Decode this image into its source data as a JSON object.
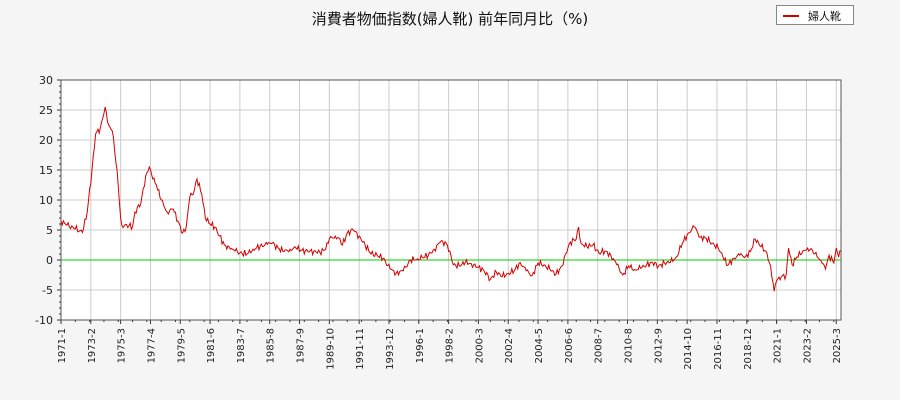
{
  "chart_data": {
    "type": "line",
    "title": "消費者物価指数(婦人靴) 前年同月比（%)",
    "legend": {
      "placement": "top-right",
      "entries": [
        "婦人靴"
      ]
    },
    "ylim": [
      -10,
      30
    ],
    "yticks": [
      -10,
      -5,
      0,
      5,
      10,
      15,
      20,
      25,
      30
    ],
    "xlim": [
      "1971-1",
      "2025-7"
    ],
    "xticks": [
      "1971-1",
      "1973-2",
      "1975-3",
      "1977-4",
      "1979-5",
      "1981-6",
      "1983-7",
      "1985-8",
      "1987-9",
      "1989-10",
      "1991-11",
      "1993-12",
      "1996-1",
      "1998-2",
      "2000-3",
      "2002-4",
      "2004-5",
      "2006-6",
      "2008-7",
      "2010-8",
      "2012-9",
      "2014-10",
      "2016-11",
      "2018-12",
      "2021-1",
      "2023-2",
      "2025-3"
    ],
    "grid": true,
    "reference_line": {
      "y": 0,
      "color": "#00cc00"
    },
    "series": [
      {
        "name": "婦人靴",
        "color": "#d40000",
        "points": [
          [
            "1971-1",
            6.5
          ],
          [
            "1971-6",
            5.8
          ],
          [
            "1972-1",
            5.2
          ],
          [
            "1972-7",
            4.6
          ],
          [
            "1972-11",
            8.0
          ],
          [
            "1973-3",
            15.0
          ],
          [
            "1973-6",
            21.0
          ],
          [
            "1973-10",
            22.0
          ],
          [
            "1974-2",
            25.5
          ],
          [
            "1974-5",
            22.5
          ],
          [
            "1974-8",
            21.5
          ],
          [
            "1974-12",
            15.0
          ],
          [
            "1975-3",
            7.0
          ],
          [
            "1975-4",
            5.8
          ],
          [
            "1975-10",
            5.7
          ],
          [
            "1976-1",
            5.5
          ],
          [
            "1976-3",
            8.0
          ],
          [
            "1976-8",
            9.5
          ],
          [
            "1976-12",
            14.0
          ],
          [
            "1977-3",
            15.5
          ],
          [
            "1977-6",
            13.5
          ],
          [
            "1977-9",
            12.5
          ],
          [
            "1978-1",
            10.0
          ],
          [
            "1978-6",
            8.0
          ],
          [
            "1978-11",
            8.5
          ],
          [
            "1979-3",
            6.5
          ],
          [
            "1979-7",
            4.5
          ],
          [
            "1979-10",
            5.5
          ],
          [
            "1980-1",
            10.5
          ],
          [
            "1980-4",
            11.0
          ],
          [
            "1980-7",
            13.5
          ],
          [
            "1980-11",
            11.0
          ],
          [
            "1981-2",
            7.0
          ],
          [
            "1981-6",
            6.0
          ],
          [
            "1981-10",
            5.5
          ],
          [
            "1982-2",
            4.0
          ],
          [
            "1982-6",
            2.5
          ],
          [
            "1982-11",
            1.8
          ],
          [
            "1983-3",
            1.5
          ],
          [
            "1983-7",
            1.2
          ],
          [
            "1984-1",
            1.0
          ],
          [
            "1984-6",
            1.8
          ],
          [
            "1984-12",
            2.3
          ],
          [
            "1985-6",
            2.6
          ],
          [
            "1985-10",
            2.8
          ],
          [
            "1986-3",
            2.0
          ],
          [
            "1986-8",
            1.4
          ],
          [
            "1987-1",
            1.8
          ],
          [
            "1987-6",
            2.0
          ],
          [
            "1987-11",
            1.6
          ],
          [
            "1988-4",
            1.4
          ],
          [
            "1988-9",
            1.5
          ],
          [
            "1989-2",
            1.3
          ],
          [
            "1989-7",
            1.8
          ],
          [
            "1989-10",
            3.5
          ],
          [
            "1990-3",
            4.0
          ],
          [
            "1990-6",
            3.7
          ],
          [
            "1990-9",
            2.5
          ],
          [
            "1991-1",
            4.5
          ],
          [
            "1991-6",
            5.0
          ],
          [
            "1991-11",
            4.0
          ],
          [
            "1992-4",
            2.5
          ],
          [
            "1992-9",
            1.0
          ],
          [
            "1993-2",
            0.8
          ],
          [
            "1993-7",
            0.3
          ],
          [
            "1994-1",
            -1.5
          ],
          [
            "1994-6",
            -2.2
          ],
          [
            "1994-12",
            -1.8
          ],
          [
            "1995-6",
            0.0
          ],
          [
            "1995-12",
            0.2
          ],
          [
            "1996-4",
            0.4
          ],
          [
            "1996-9",
            0.8
          ],
          [
            "1997-2",
            1.8
          ],
          [
            "1997-7",
            3.0
          ],
          [
            "1997-12",
            2.8
          ],
          [
            "1998-3",
            1.5
          ],
          [
            "1998-6",
            -0.8
          ],
          [
            "1998-11",
            -1.0
          ],
          [
            "1999-4",
            -0.4
          ],
          [
            "1999-9",
            -0.6
          ],
          [
            "2000-2",
            -1.2
          ],
          [
            "2000-7",
            -1.6
          ],
          [
            "2001-1",
            -3.2
          ],
          [
            "2001-6",
            -2.0
          ],
          [
            "2001-11",
            -2.8
          ],
          [
            "2002-4",
            -2.2
          ],
          [
            "2002-9",
            -1.8
          ],
          [
            "2003-2",
            -0.4
          ],
          [
            "2003-7",
            -1.8
          ],
          [
            "2003-12",
            -2.6
          ],
          [
            "2004-5",
            -0.5
          ],
          [
            "2004-10",
            -0.8
          ],
          [
            "2005-3",
            -1.6
          ],
          [
            "2005-8",
            -2.4
          ],
          [
            "2006-1",
            -1.0
          ],
          [
            "2006-4",
            1.0
          ],
          [
            "2006-8",
            3.0
          ],
          [
            "2007-1",
            3.5
          ],
          [
            "2007-3",
            5.5
          ],
          [
            "2007-5",
            2.8
          ],
          [
            "2007-10",
            2.2
          ],
          [
            "2008-3",
            2.5
          ],
          [
            "2008-8",
            1.2
          ],
          [
            "2009-1",
            1.5
          ],
          [
            "2009-6",
            0.8
          ],
          [
            "2009-11",
            -0.8
          ],
          [
            "2010-4",
            -2.5
          ],
          [
            "2010-9",
            -1.0
          ],
          [
            "2011-2",
            -1.6
          ],
          [
            "2011-7",
            -1.4
          ],
          [
            "2011-12",
            -0.8
          ],
          [
            "2012-5",
            -0.4
          ],
          [
            "2012-10",
            -1.0
          ],
          [
            "2013-3",
            -0.5
          ],
          [
            "2013-8",
            -0.4
          ],
          [
            "2014-1",
            0.5
          ],
          [
            "2014-6",
            2.8
          ],
          [
            "2014-11",
            4.5
          ],
          [
            "2015-4",
            5.5
          ],
          [
            "2015-9",
            3.8
          ],
          [
            "2016-2",
            3.6
          ],
          [
            "2016-7",
            2.8
          ],
          [
            "2016-12",
            2.0
          ],
          [
            "2017-4",
            0.5
          ],
          [
            "2017-8",
            -0.9
          ],
          [
            "2018-1",
            0.3
          ],
          [
            "2018-6",
            0.8
          ],
          [
            "2018-11",
            0.6
          ],
          [
            "2019-3",
            1.4
          ],
          [
            "2019-7",
            3.5
          ],
          [
            "2019-12",
            2.2
          ],
          [
            "2020-4",
            1.5
          ],
          [
            "2020-8",
            -1.0
          ],
          [
            "2020-11",
            -5.2
          ],
          [
            "2021-1",
            -3.5
          ],
          [
            "2021-5",
            -2.8
          ],
          [
            "2021-9",
            -2.5
          ],
          [
            "2021-11",
            2.0
          ],
          [
            "2022-2",
            -0.8
          ],
          [
            "2022-6",
            0.5
          ],
          [
            "2022-11",
            1.5
          ],
          [
            "2023-3",
            2.0
          ],
          [
            "2023-7",
            1.6
          ],
          [
            "2023-11",
            0.5
          ],
          [
            "2024-3",
            -0.5
          ],
          [
            "2024-6",
            -1.5
          ],
          [
            "2024-9",
            0.8
          ],
          [
            "2025-1",
            -0.5
          ],
          [
            "2025-3",
            2.0
          ],
          [
            "2025-5",
            0.5
          ],
          [
            "2025-7",
            1.5
          ]
        ]
      }
    ]
  }
}
